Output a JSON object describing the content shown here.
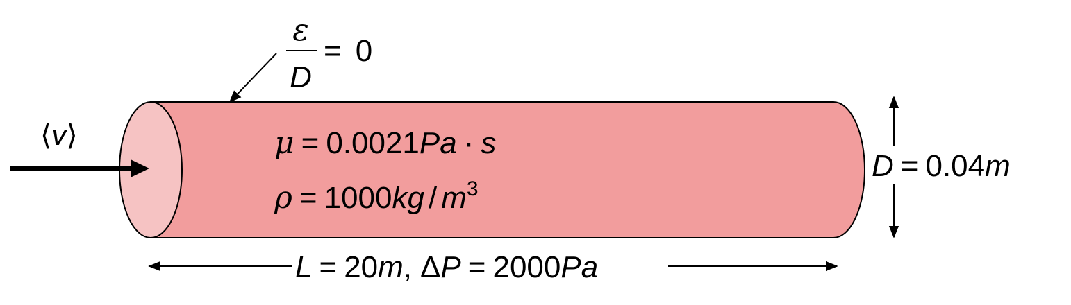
{
  "colors": {
    "pipe_body": "#F29D9D",
    "pipe_inlet_face": "#F6C3C3",
    "stroke": "#000000"
  },
  "roughness": {
    "numerator": "ε",
    "denominator": "D",
    "equals": "=",
    "value": "0"
  },
  "velocity": {
    "left_bracket": "⟨",
    "symbol": "v",
    "right_bracket": "⟩"
  },
  "viscosity": {
    "symbol": "μ",
    "equals": "=",
    "value": "0.0021",
    "unit_a": "Pa",
    "dot": "·",
    "unit_b": "s"
  },
  "density": {
    "symbol": "ρ",
    "equals": "=",
    "value": "1000",
    "unit_kg": "kg",
    "slash": "/",
    "unit_m": "m",
    "exponent": "3"
  },
  "diameter": {
    "symbol": "D",
    "equals": "=",
    "value": "0.04",
    "unit": "m"
  },
  "length_pressure": {
    "length_symbol": "L",
    "equals": "=",
    "length_value": "20",
    "length_unit": "m",
    "comma": ",",
    "delta": "Δ",
    "pressure_symbol": "P",
    "equals2": "=",
    "pressure_value": "2000",
    "pressure_unit": "Pa"
  }
}
